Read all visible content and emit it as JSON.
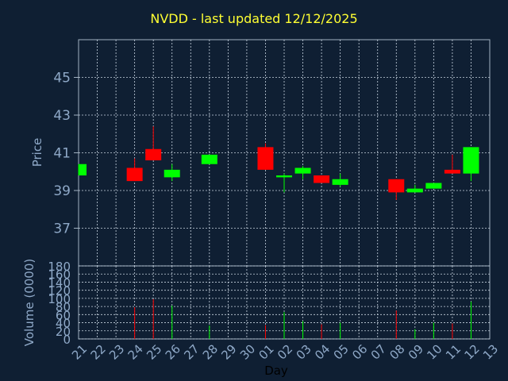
{
  "title": "NVDD - last updated 12/12/2025",
  "chart_data": {
    "type": "candlestick",
    "title": "NVDD - last updated 12/12/2025",
    "xlabel": "Day",
    "ylabel": "Price",
    "volume_label": "Volume (0000)",
    "price_ylim": [
      35,
      47
    ],
    "price_ticks": [
      37,
      39,
      41,
      43,
      45
    ],
    "volume_ylim": [
      0,
      180
    ],
    "volume_ticks": [
      0,
      20,
      40,
      60,
      80,
      100,
      120,
      140,
      160,
      180
    ],
    "grid": true,
    "colors": {
      "up": "#00ff00",
      "down": "#ff0000",
      "background": "#0f1f33",
      "axis_text": "#8fa9c8",
      "title": "#ffff33"
    },
    "x_labels": [
      "21",
      "22",
      "23",
      "24",
      "25",
      "26",
      "27",
      "28",
      "29",
      "30",
      "01",
      "02",
      "03",
      "04",
      "05",
      "06",
      "07",
      "08",
      "09",
      "10",
      "11",
      "12",
      "13"
    ],
    "candles": [
      {
        "day": "21",
        "open": 39.8,
        "high": 40.4,
        "low": 39.8,
        "close": 40.4,
        "volume": 0
      },
      {
        "day": "24",
        "open": 40.2,
        "high": 40.7,
        "low": 39.5,
        "close": 39.5,
        "volume": 78
      },
      {
        "day": "25",
        "open": 41.2,
        "high": 42.4,
        "low": 40.6,
        "close": 40.6,
        "volume": 98
      },
      {
        "day": "26",
        "open": 39.7,
        "high": 40.4,
        "low": 39.5,
        "close": 40.1,
        "volume": 82
      },
      {
        "day": "28",
        "open": 40.4,
        "high": 40.9,
        "low": 40.4,
        "close": 40.9,
        "volume": 33
      },
      {
        "day": "01",
        "open": 41.3,
        "high": 41.5,
        "low": 40.1,
        "close": 40.1,
        "volume": 34
      },
      {
        "day": "02",
        "open": 39.7,
        "high": 39.9,
        "low": 38.9,
        "close": 39.8,
        "volume": 66
      },
      {
        "day": "03",
        "open": 39.9,
        "high": 40.3,
        "low": 39.6,
        "close": 40.2,
        "volume": 44
      },
      {
        "day": "04",
        "open": 39.8,
        "high": 39.8,
        "low": 39.4,
        "close": 39.4,
        "volume": 36
      },
      {
        "day": "05",
        "open": 39.3,
        "high": 39.9,
        "low": 39.2,
        "close": 39.6,
        "volume": 40
      },
      {
        "day": "08",
        "open": 39.6,
        "high": 39.6,
        "low": 38.5,
        "close": 38.9,
        "volume": 70
      },
      {
        "day": "09",
        "open": 38.9,
        "high": 39.3,
        "low": 38.9,
        "close": 39.1,
        "volume": 24
      },
      {
        "day": "10",
        "open": 39.1,
        "high": 39.4,
        "low": 39.1,
        "close": 39.4,
        "volume": 40
      },
      {
        "day": "11",
        "open": 40.1,
        "high": 40.9,
        "low": 39.9,
        "close": 39.9,
        "volume": 38
      },
      {
        "day": "12",
        "open": 39.9,
        "high": 41.3,
        "low": 39.5,
        "close": 41.3,
        "volume": 92
      }
    ]
  }
}
